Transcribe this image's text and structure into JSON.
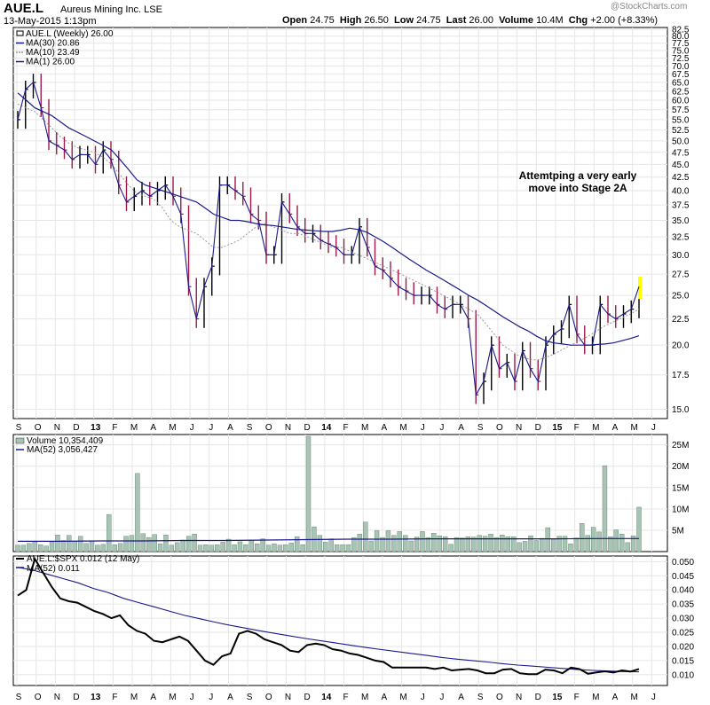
{
  "header": {
    "ticker": "AUE.L",
    "company": "Aureus Mining Inc. LSE",
    "date": "13-May-2015 1:13pm",
    "open_label": "Open",
    "open": "24.75",
    "high_label": "High",
    "high": "26.50",
    "low_label": "Low",
    "low": "24.75",
    "last_label": "Last",
    "last": "26.00",
    "volume_label": "Volume",
    "volume": "10.4M",
    "chg_label": "Chg",
    "chg": "+2.00 (+8.33%)",
    "brand": "@StockCharts.com"
  },
  "colors": {
    "price_bar": "#9c1a4a",
    "ma30": "#1a1a8c",
    "ma10": "#999999",
    "volume_bar": "#a8c4b4",
    "grid": "#e6e6e6",
    "last_bar_highlight": "#ffff00"
  },
  "x_axis": [
    "S",
    "O",
    "N",
    "D",
    "13",
    "F",
    "M",
    "A",
    "M",
    "J",
    "J",
    "A",
    "S",
    "O",
    "N",
    "D",
    "14",
    "F",
    "M",
    "A",
    "M",
    "J",
    "J",
    "A",
    "S",
    "O",
    "N",
    "D",
    "15",
    "F",
    "M",
    "A",
    "M",
    "J"
  ],
  "chart_data": [
    {
      "type": "line",
      "panel": "price",
      "legend": [
        "AUE.L (Weekly) 26.00",
        "MA(30) 20.86",
        "MA(10) 23.49",
        "MA(1) 26.00"
      ],
      "ylim": [
        14.5,
        82.5
      ],
      "log_scale": true,
      "y_ticks": [
        "15.0",
        "17.5",
        "20.0",
        "22.5",
        "25.0",
        "27.5",
        "30.0",
        "32.5",
        "35.0",
        "37.5",
        "40.0",
        "42.5",
        "45.0",
        "47.5",
        "50.0",
        "52.5",
        "55.0",
        "57.5",
        "60.0",
        "62.5",
        "65.0",
        "67.5",
        "70.0",
        "72.5",
        "75.0",
        "77.5",
        "80.0",
        "82.5"
      ],
      "annotation": "Attemtping a very early move into Stage 2A",
      "series": [
        {
          "name": "MA(1)",
          "values": [
            55,
            63,
            65,
            58,
            50,
            49,
            48,
            46,
            47,
            47,
            45,
            48,
            46,
            41,
            38,
            39,
            40,
            39,
            40,
            41,
            39,
            36,
            26,
            22.5,
            26,
            28.5,
            41,
            41,
            40,
            39,
            36,
            35,
            30,
            30,
            38,
            36,
            34,
            33,
            33,
            32,
            31.5,
            31,
            30,
            30,
            34,
            31,
            28.5,
            28,
            27,
            26,
            25.5,
            25,
            25,
            25,
            24,
            23.5,
            24,
            24,
            22.5,
            16,
            17,
            20,
            18,
            18.5,
            17,
            19.5,
            18,
            17,
            20,
            21,
            21.5,
            24,
            21,
            20,
            20,
            24,
            23,
            22.5,
            23,
            23.5,
            26
          ]
        },
        {
          "name": "MA(30)",
          "values": [
            62,
            60,
            58,
            57,
            56,
            54.5,
            53,
            52,
            51,
            50,
            49,
            48,
            46,
            44,
            42,
            41,
            40.5,
            40,
            39.5,
            39,
            38.5,
            38,
            37,
            36,
            35.5,
            35,
            35,
            34.8,
            34.5,
            34.3,
            34.2,
            34,
            33.8,
            33.6,
            33.5,
            33.4,
            33.3,
            33.3,
            33.5,
            33.8,
            33.6,
            33.2,
            32.5,
            31.8,
            31,
            30.2,
            29.4,
            28.7,
            28,
            27.4,
            26.8,
            26.2,
            25.6,
            25,
            24.5,
            23.9,
            23.3,
            22.7,
            22.2,
            21.7,
            21.3,
            20.8,
            20.4,
            20.2,
            20.1,
            20.0,
            20.0,
            20.0,
            20.05,
            20.1,
            20.2,
            20.4,
            20.6,
            20.86
          ]
        },
        {
          "name": "MA(10)",
          "values": [
            59,
            58,
            57,
            55,
            53,
            51,
            49.5,
            48.5,
            48,
            47.5,
            46.5,
            45,
            43,
            41,
            39.5,
            39,
            38.5,
            37,
            35,
            34,
            33.5,
            33,
            32,
            31,
            31,
            31.5,
            32,
            33,
            34,
            34.5,
            34,
            33.5,
            33,
            33,
            32.5,
            32,
            31.5,
            31,
            31,
            30.5,
            30,
            29.5,
            29,
            28.5,
            28,
            27.5,
            27,
            26.5,
            26,
            25.5,
            25,
            24.5,
            24,
            23.5,
            23,
            22,
            21,
            20,
            19.5,
            19,
            18.8,
            18.7,
            18.9,
            19.2,
            19.6,
            20,
            20.4,
            20.8,
            21.3,
            21.8,
            22.2,
            22.6,
            23,
            23.49
          ]
        }
      ]
    },
    {
      "type": "bar",
      "panel": "volume",
      "legend": [
        "Volume 10,354,409",
        "MA(52) 3,056,427"
      ],
      "ylim": [
        0,
        27
      ],
      "y_ticks": [
        "5M",
        "10M",
        "15M",
        "20M",
        "25M"
      ],
      "values": [
        1.5,
        1.5,
        1.9,
        2.3,
        1.6,
        1.3,
        2.3,
        3.9,
        2.6,
        3.8,
        2.4,
        3.6,
        1.9,
        2.5,
        1.5,
        1.7,
        8.7,
        1.6,
        1.9,
        3.6,
        3.8,
        18.3,
        4.2,
        3.3,
        4,
        1.8,
        3.9,
        1.5,
        2.1,
        2.7,
        3.6,
        4.1,
        1.5,
        1.6,
        1.5,
        1.6,
        2.2,
        2.9,
        1.6,
        2.3,
        1.6,
        2.7,
        1.8,
        3,
        1.5,
        1.8,
        1.5,
        1.6,
        2,
        3.5,
        1.6,
        27.5,
        5.8,
        3.8,
        2.2,
        3,
        1.6,
        1.6,
        1.6,
        3.3,
        4.1,
        6.9,
        2.5,
        4.9,
        3.3,
        4.9,
        3.8,
        4.7,
        3.8,
        2.5,
        3.4,
        4.7,
        3.3,
        4.3,
        3.7,
        3.5,
        1.7,
        3.3,
        3.2,
        3.5,
        3.4,
        3.8,
        3.6,
        4.1,
        3.3,
        3.9,
        3.5,
        3.5,
        2.1,
        2.4,
        3.7,
        2.6,
        3.1,
        5.6,
        2.9,
        3.6,
        3.6,
        1.8,
        3.2,
        6.6,
        3.8,
        5.7,
        4.6,
        20.1,
        3.5,
        5.1,
        4.1,
        2.1,
        3.7,
        10.4
      ],
      "ma_values": [
        2.4,
        2.4,
        2.5,
        2.5,
        2.6,
        2.6,
        2.7,
        2.8,
        2.9,
        2.9,
        3.0,
        3.0,
        3.0,
        3.0,
        3.05,
        3.05
      ]
    },
    {
      "type": "line",
      "panel": "ratio",
      "legend": [
        "AUE.L:$SPX 0.012 (12 May)",
        "MA(52) 0.011"
      ],
      "ylim": [
        0.0068,
        0.052
      ],
      "y_ticks": [
        "0.010",
        "0.015",
        "0.020",
        "0.025",
        "0.030",
        "0.035",
        "0.040",
        "0.045",
        "0.050"
      ],
      "series": [
        {
          "name": "AUE.L:$SPX",
          "values": [
            0.038,
            0.04,
            0.051,
            0.046,
            0.041,
            0.037,
            0.036,
            0.0355,
            0.034,
            0.0325,
            0.0315,
            0.03,
            0.031,
            0.0275,
            0.0255,
            0.0245,
            0.022,
            0.0215,
            0.0225,
            0.0235,
            0.022,
            0.0185,
            0.015,
            0.0135,
            0.0165,
            0.0175,
            0.0245,
            0.0255,
            0.0245,
            0.0225,
            0.0215,
            0.0205,
            0.0185,
            0.018,
            0.0205,
            0.021,
            0.0205,
            0.019,
            0.0185,
            0.0175,
            0.017,
            0.016,
            0.015,
            0.0145,
            0.0125,
            0.0125,
            0.0125,
            0.0125,
            0.0125,
            0.012,
            0.0125,
            0.0115,
            0.0118,
            0.012,
            0.0115,
            0.0105,
            0.0105,
            0.0118,
            0.012,
            0.0105,
            0.0102,
            0.0102,
            0.0118,
            0.0115,
            0.0105,
            0.0125,
            0.012,
            0.0103,
            0.0108,
            0.0112,
            0.0108,
            0.0115,
            0.0111,
            0.012
          ]
        },
        {
          "name": "MA(52)",
          "values": [
            0.048,
            0.047,
            0.0455,
            0.044,
            0.0425,
            0.0405,
            0.039,
            0.037,
            0.0355,
            0.034,
            0.0325,
            0.031,
            0.0298,
            0.0286,
            0.0275,
            0.0265,
            0.0255,
            0.0246,
            0.0237,
            0.0228,
            0.022,
            0.0212,
            0.0204,
            0.0196,
            0.0189,
            0.0182,
            0.0175,
            0.0168,
            0.0161,
            0.0155,
            0.015,
            0.0145,
            0.0139,
            0.0134,
            0.013,
            0.0126,
            0.0122,
            0.0118,
            0.0115,
            0.0113,
            0.0111,
            0.011
          ]
        }
      ]
    }
  ]
}
